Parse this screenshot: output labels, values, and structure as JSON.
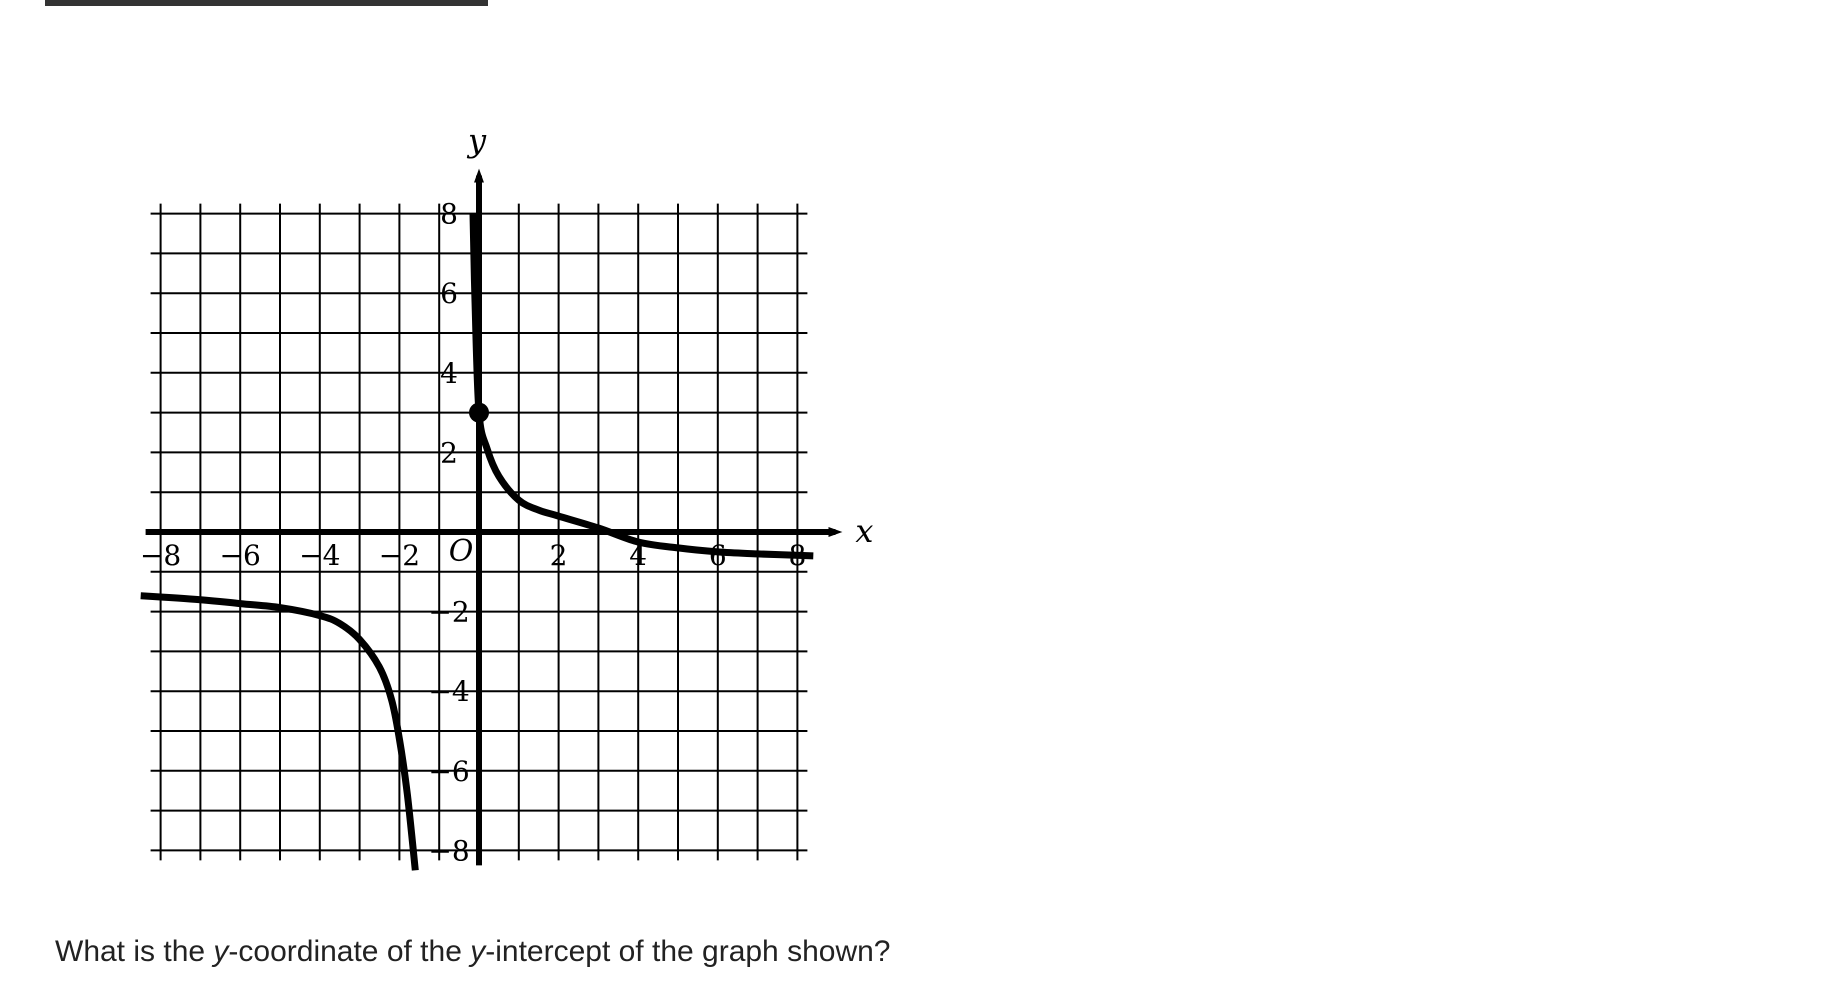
{
  "header": {
    "bar_color": "#333333"
  },
  "question": {
    "part1": "What is the ",
    "var1": "y",
    "part2": "-coordinate of the ",
    "var2": "y",
    "part3": "-intercept of the graph shown?"
  },
  "chart_data": {
    "type": "line",
    "xlabel": "x",
    "ylabel": "y",
    "origin_label": "O",
    "xlim": [
      -8,
      8
    ],
    "ylim": [
      -8,
      8
    ],
    "grid": true,
    "grid_step": 1,
    "x_tick_labels": [
      {
        "value": -8,
        "label": "−8"
      },
      {
        "value": -6,
        "label": "−6"
      },
      {
        "value": -4,
        "label": "−4"
      },
      {
        "value": -2,
        "label": "−2"
      },
      {
        "value": 2,
        "label": "2"
      },
      {
        "value": 4,
        "label": "4"
      },
      {
        "value": 6,
        "label": "6"
      },
      {
        "value": 8,
        "label": "8"
      }
    ],
    "y_tick_labels": [
      {
        "value": 8,
        "label": "8"
      },
      {
        "value": 6,
        "label": "6"
      },
      {
        "value": 4,
        "label": "4"
      },
      {
        "value": 2,
        "label": "2"
      },
      {
        "value": -2,
        "label": "−2"
      },
      {
        "value": -4,
        "label": "−4"
      },
      {
        "value": -6,
        "label": "−6"
      },
      {
        "value": -8,
        "label": "−8"
      }
    ],
    "series": [
      {
        "x": [
          -0.15,
          -0.1,
          0,
          0.2,
          0.5,
          1,
          1.5,
          2,
          3,
          4,
          5,
          6,
          7,
          8.4
        ],
        "y": [
          8,
          5.8,
          3,
          2.1,
          1.4,
          0.8,
          0.55,
          0.4,
          0.1,
          -0.25,
          -0.4,
          -0.5,
          -0.55,
          -0.6
        ]
      },
      {
        "x": [
          -8.5,
          -7,
          -6,
          -5,
          -4,
          -3.5,
          -3,
          -2.5,
          -2.2,
          -2,
          -1.8,
          -1.6
        ],
        "y": [
          -1.6,
          -1.7,
          -1.8,
          -1.9,
          -2.1,
          -2.3,
          -2.7,
          -3.4,
          -4.2,
          -5.2,
          -6.6,
          -8.5
        ]
      }
    ],
    "points": [
      {
        "x": 0,
        "y": 3
      }
    ],
    "line_color": "#000000",
    "grid_color": "#000000"
  }
}
